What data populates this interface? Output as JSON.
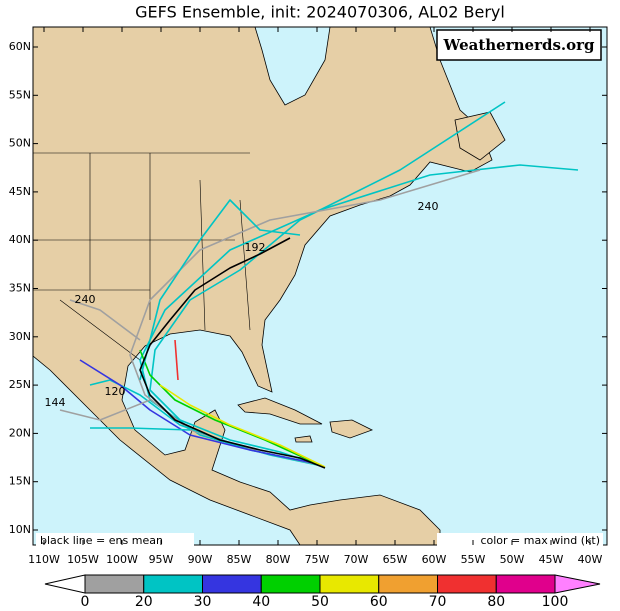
{
  "title": "GEFS Ensemble, init: 2024070306, AL02 Beryl",
  "credit": "Weathernerds.org",
  "note_left": "black line = ens mean",
  "note_right": "color = max wind (kt)",
  "lat_ticks": [
    {
      "value": 60,
      "label": "60N"
    },
    {
      "value": 55,
      "label": "55N"
    },
    {
      "value": 50,
      "label": "50N"
    },
    {
      "value": 45,
      "label": "45N"
    },
    {
      "value": 40,
      "label": "40N"
    },
    {
      "value": 35,
      "label": "35N"
    },
    {
      "value": 30,
      "label": "30N"
    },
    {
      "value": 25,
      "label": "25N"
    },
    {
      "value": 20,
      "label": "20N"
    },
    {
      "value": 15,
      "label": "15N"
    },
    {
      "value": 10,
      "label": "10N"
    }
  ],
  "lon_ticks": [
    {
      "value": -110,
      "label": "110W"
    },
    {
      "value": -105,
      "label": "105W"
    },
    {
      "value": -100,
      "label": "100W"
    },
    {
      "value": -95,
      "label": "95W"
    },
    {
      "value": -90,
      "label": "90W"
    },
    {
      "value": -85,
      "label": "85W"
    },
    {
      "value": -80,
      "label": "80W"
    },
    {
      "value": -75,
      "label": "75W"
    },
    {
      "value": -70,
      "label": "70W"
    },
    {
      "value": -65,
      "label": "65W"
    },
    {
      "value": -60,
      "label": "60W"
    },
    {
      "value": -55,
      "label": "55W"
    },
    {
      "value": -50,
      "label": "50W"
    },
    {
      "value": -45,
      "label": "45W"
    },
    {
      "value": -40,
      "label": "40W"
    }
  ],
  "track_labels": [
    "240",
    "240",
    "144",
    "120",
    "192"
  ],
  "colorbar": {
    "labels": [
      0,
      20,
      30,
      40,
      50,
      60,
      70,
      80,
      100
    ],
    "colors": [
      "#ffffff",
      "#a0a0a0",
      "#00c4c4",
      "#3535e0",
      "#00d000",
      "#e8e800",
      "#f0a030",
      "#f03030",
      "#e0008c",
      "#ff80ff"
    ]
  }
}
